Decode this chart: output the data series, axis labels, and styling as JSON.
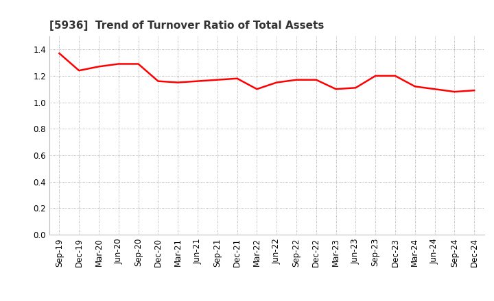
{
  "title": "[5936]  Trend of Turnover Ratio of Total Assets",
  "x_labels": [
    "Sep-19",
    "Dec-19",
    "Mar-20",
    "Jun-20",
    "Sep-20",
    "Dec-20",
    "Mar-21",
    "Jun-21",
    "Sep-21",
    "Dec-21",
    "Mar-22",
    "Jun-22",
    "Sep-22",
    "Dec-22",
    "Mar-23",
    "Jun-23",
    "Sep-23",
    "Dec-23",
    "Mar-24",
    "Jun-24",
    "Sep-24",
    "Dec-24"
  ],
  "values": [
    1.37,
    1.24,
    1.27,
    1.29,
    1.29,
    1.16,
    1.15,
    1.16,
    1.17,
    1.18,
    1.1,
    1.15,
    1.17,
    1.17,
    1.1,
    1.11,
    1.2,
    1.2,
    1.12,
    1.1,
    1.08,
    1.09
  ],
  "line_color": "#ff0000",
  "line_width": 1.8,
  "ylim": [
    0.0,
    1.5
  ],
  "yticks": [
    0.0,
    0.2,
    0.4,
    0.6,
    0.8,
    1.0,
    1.2,
    1.4
  ],
  "background_color": "#ffffff",
  "grid_color": "#999999",
  "title_fontsize": 11,
  "tick_fontsize": 8.5
}
